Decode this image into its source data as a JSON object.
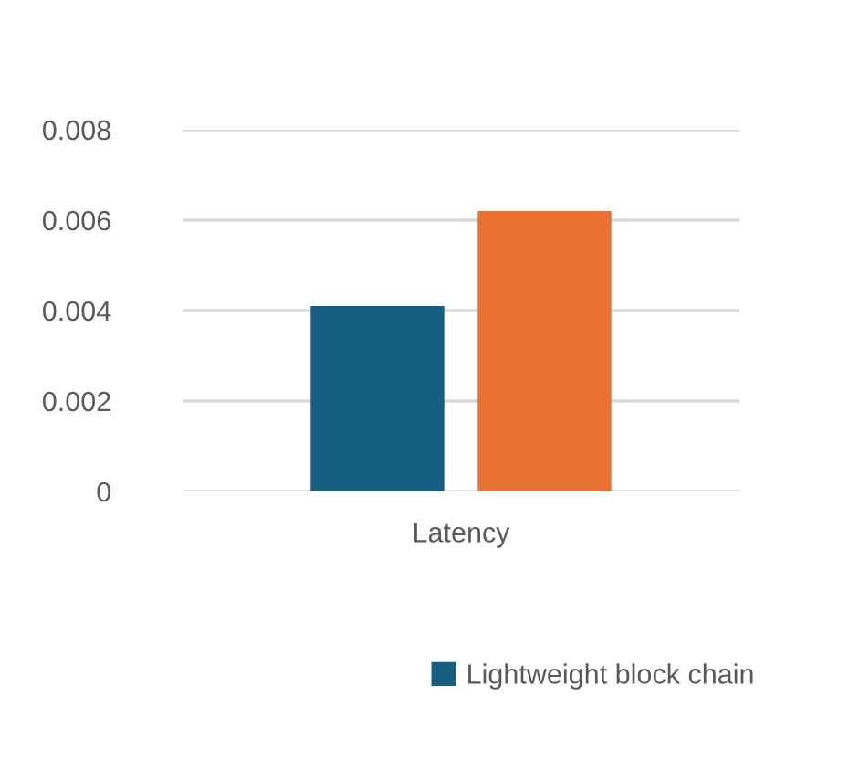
{
  "chart_data": {
    "type": "bar",
    "categories": [
      "Latency"
    ],
    "series": [
      {
        "name": "Lightweight block chain",
        "color": "#175f82",
        "values": [
          0.0041
        ]
      },
      {
        "color": "#e97132",
        "values": [
          0.0062
        ]
      }
    ],
    "ylim": [
      0,
      0.008
    ],
    "yticks": [
      0,
      0.002,
      0.004,
      0.006,
      0.008
    ],
    "grid": "y",
    "legend": "bottom"
  }
}
